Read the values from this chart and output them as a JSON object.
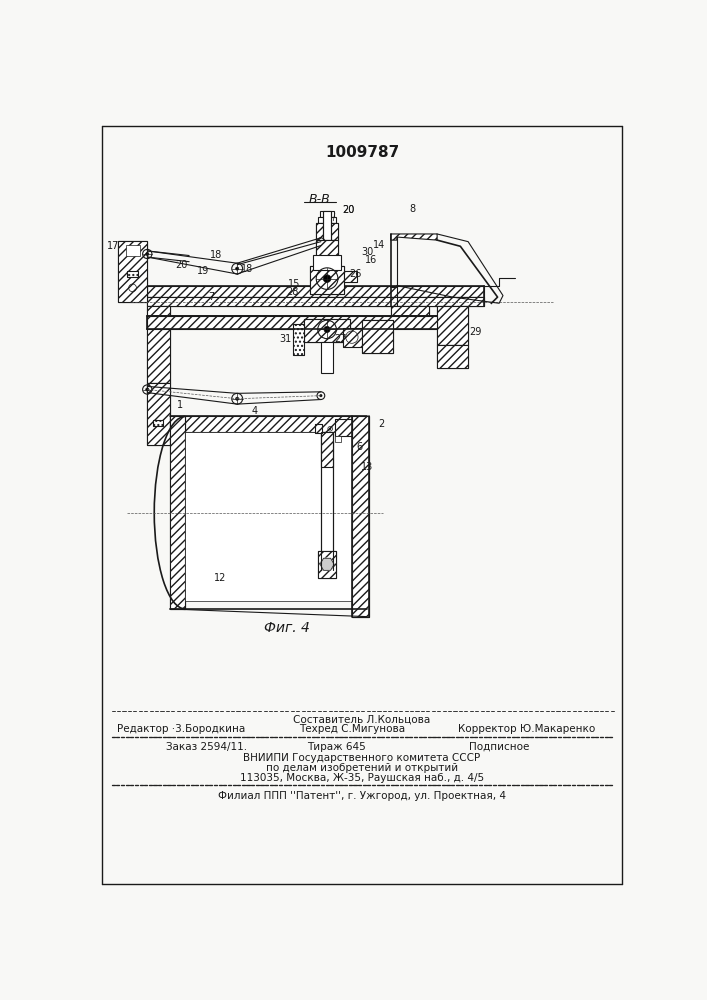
{
  "patent_number": "1009787",
  "figure_label": "Фиг. 4",
  "section_label": "В-В",
  "bg_color": "#f8f8f6",
  "line_color": "#1a1a1a",
  "footer": {
    "sestavitel": "Составитель Л.Кольцова",
    "redaktor": "Редактор ·3.Бородкина",
    "tekhred": "Техред С.Мигунова",
    "korrektor": "Корректор Ю.Макаренко",
    "zakaz": "Заказ 2594/11.",
    "tirazh": "Тираж 645",
    "podpisnoe": "Подписное",
    "vniipи": "ВНИИПИ Государственного комитета СССР",
    "po_delam": "по делам изобретений и открытий",
    "address": "113035, Москва, Ж-35, Раушская наб., д. 4/5",
    "filial": "Филиал ППП ''Патент'', г. Ужгород, ул. Проектная, 4"
  }
}
